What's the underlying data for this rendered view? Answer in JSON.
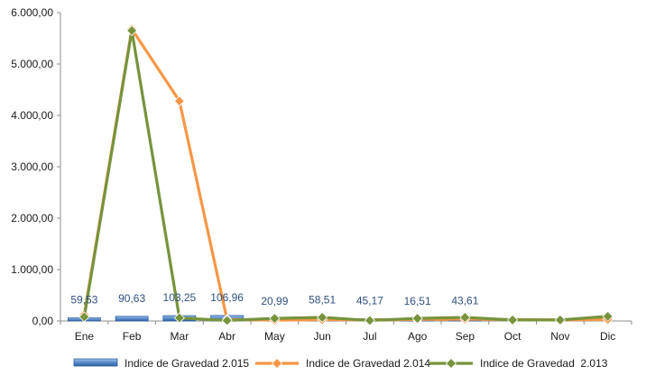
{
  "chart_data": {
    "type": "bar+line",
    "categories": [
      "Ene",
      "Feb",
      "Mar",
      "Abr",
      "May",
      "Jun",
      "Jul",
      "Ago",
      "Sep",
      "Oct",
      "Nov",
      "Dic"
    ],
    "y_ticks": [
      "0,00",
      "1.000,00",
      "2.000,00",
      "3.000,00",
      "4.000,00",
      "5.000,00",
      "6.000,00"
    ],
    "ylim": [
      0,
      6000
    ],
    "grid": false,
    "legend_position": "bottom",
    "series": [
      {
        "name": "Indice de Gravedad 2.015",
        "kind": "bar",
        "color": "#4f81bd",
        "values": [
          59.53,
          90.63,
          103.25,
          106.96,
          20.99,
          58.51,
          45.17,
          16.51,
          43.61,
          null,
          null,
          null
        ],
        "data_labels": [
          "59,53",
          "90,63",
          "103,25",
          "106,96",
          "20,99",
          "58,51",
          "45,17",
          "16,51",
          "43,61",
          "",
          "",
          ""
        ]
      },
      {
        "name": "Indice de Gravedad 2.014",
        "kind": "line",
        "color": "#f79646",
        "values": [
          120,
          5680,
          4280,
          30,
          15,
          25,
          20,
          30,
          35,
          30,
          20,
          30
        ]
      },
      {
        "name": "Indice de Gravedad  2.013",
        "kind": "line",
        "color": "#77933c",
        "values": [
          80,
          5650,
          60,
          10,
          50,
          70,
          10,
          50,
          70,
          20,
          20,
          90
        ]
      }
    ]
  }
}
